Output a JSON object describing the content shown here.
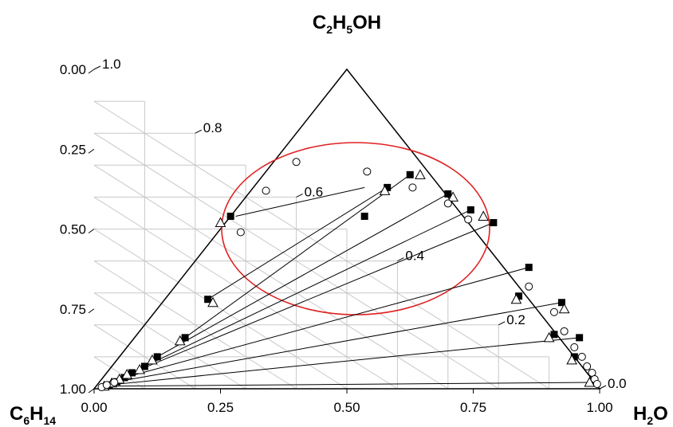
{
  "chart_data": {
    "type": "scatter",
    "subtype": "ternary",
    "title": "",
    "vertices": {
      "top": {
        "base": "C",
        "sub": "2",
        "base2": "H",
        "sub2": "5",
        "base3": "OH"
      },
      "bottom_left": {
        "base": "C",
        "sub": "6",
        "base2": "H",
        "sub2": "14"
      },
      "bottom_right": {
        "base": "H",
        "sub": "2",
        "base2": "O"
      }
    },
    "vertex_labels": {
      "top": "C2H5OH",
      "bottom_left": "C6H14",
      "bottom_right": "H2O"
    },
    "axes": {
      "bottom": {
        "ticks": [
          "0.00",
          "0.25",
          "0.50",
          "0.75",
          "1.00"
        ],
        "values": [
          0,
          0.25,
          0.5,
          0.75,
          1
        ]
      },
      "left": {
        "ticks": [
          "0.00",
          "0.25",
          "0.50",
          "0.75",
          "1.00"
        ],
        "values": [
          0,
          0.25,
          0.5,
          0.75,
          1
        ]
      },
      "right": {
        "ticks": [
          "0.0",
          "0.2",
          "0.4",
          "0.6",
          "0.8",
          "1.0"
        ],
        "values": [
          0,
          0.2,
          0.4,
          0.6,
          0.8,
          1
        ]
      }
    },
    "grid": true,
    "grid_step": 0.1,
    "highlight_ellipse": {
      "color": "#e02020"
    },
    "coordinates_note_fields": [
      "x",
      "y"
    ],
    "series": [
      {
        "marker": "filled-square",
        "points": [
          {
            "x": 0.27,
            "y": 0.54
          },
          {
            "x": 0.535,
            "y": 0.54
          },
          {
            "x": 0.225,
            "y": 0.28
          },
          {
            "x": 0.84,
            "y": 0.29
          },
          {
            "x": 0.18,
            "y": 0.16
          },
          {
            "x": 0.91,
            "y": 0.17
          },
          {
            "x": 0.125,
            "y": 0.1
          },
          {
            "x": 0.95,
            "y": 0.1
          },
          {
            "x": 0.1,
            "y": 0.07
          },
          {
            "x": 0.985,
            "y": 0.02
          },
          {
            "x": 0.075,
            "y": 0.05
          },
          {
            "x": 0.06,
            "y": 0.035
          },
          {
            "x": 0.045,
            "y": 0.022
          },
          {
            "x": 0.03,
            "y": 0.012
          },
          {
            "x": 0.58,
            "y": 0.63
          },
          {
            "x": 0.625,
            "y": 0.67
          },
          {
            "x": 0.7,
            "y": 0.61
          },
          {
            "x": 0.745,
            "y": 0.56
          },
          {
            "x": 0.79,
            "y": 0.52
          },
          {
            "x": 0.86,
            "y": 0.38
          },
          {
            "x": 0.925,
            "y": 0.27
          },
          {
            "x": 0.96,
            "y": 0.16
          }
        ]
      },
      {
        "marker": "open-triangle",
        "points": [
          {
            "x": 0.25,
            "y": 0.52
          },
          {
            "x": 0.575,
            "y": 0.62
          },
          {
            "x": 0.235,
            "y": 0.27
          },
          {
            "x": 0.835,
            "y": 0.28
          },
          {
            "x": 0.17,
            "y": 0.15
          },
          {
            "x": 0.9,
            "y": 0.16
          },
          {
            "x": 0.115,
            "y": 0.09
          },
          {
            "x": 0.945,
            "y": 0.09
          },
          {
            "x": 0.09,
            "y": 0.06
          },
          {
            "x": 0.98,
            "y": 0.02
          },
          {
            "x": 0.065,
            "y": 0.045
          },
          {
            "x": 0.05,
            "y": 0.03
          },
          {
            "x": 0.035,
            "y": 0.018
          },
          {
            "x": 0.02,
            "y": 0.008
          },
          {
            "x": 0.645,
            "y": 0.67
          },
          {
            "x": 0.71,
            "y": 0.6
          },
          {
            "x": 0.77,
            "y": 0.54
          },
          {
            "x": 0.93,
            "y": 0.25
          }
        ]
      },
      {
        "marker": "open-circle",
        "points": [
          {
            "x": 0.34,
            "y": 0.62
          },
          {
            "x": 0.4,
            "y": 0.71
          },
          {
            "x": 0.29,
            "y": 0.49
          },
          {
            "x": 0.54,
            "y": 0.68
          },
          {
            "x": 0.63,
            "y": 0.63
          },
          {
            "x": 0.7,
            "y": 0.58
          },
          {
            "x": 0.74,
            "y": 0.53
          },
          {
            "x": 0.86,
            "y": 0.32
          },
          {
            "x": 0.91,
            "y": 0.24
          },
          {
            "x": 0.93,
            "y": 0.18
          },
          {
            "x": 0.95,
            "y": 0.13
          },
          {
            "x": 0.965,
            "y": 0.1
          },
          {
            "x": 0.975,
            "y": 0.07
          },
          {
            "x": 0.985,
            "y": 0.05
          },
          {
            "x": 0.99,
            "y": 0.03
          },
          {
            "x": 0.995,
            "y": 0.015
          },
          {
            "x": 0.015,
            "y": 0.005
          },
          {
            "x": 0.025,
            "y": 0.012
          },
          {
            "x": 0.04,
            "y": 0.02
          }
        ]
      }
    ],
    "tie_lines": [
      {
        "left": {
          "x": 0.28,
          "y": 0.54
        },
        "right": {
          "x": 0.535,
          "y": 0.63
        }
      },
      {
        "left": {
          "x": 0.225,
          "y": 0.28
        },
        "right": {
          "x": 0.58,
          "y": 0.63
        }
      },
      {
        "left": {
          "x": 0.18,
          "y": 0.16
        },
        "right": {
          "x": 0.625,
          "y": 0.67
        }
      },
      {
        "left": {
          "x": 0.125,
          "y": 0.1
        },
        "right": {
          "x": 0.7,
          "y": 0.61
        }
      },
      {
        "left": {
          "x": 0.1,
          "y": 0.07
        },
        "right": {
          "x": 0.745,
          "y": 0.56
        }
      },
      {
        "left": {
          "x": 0.075,
          "y": 0.05
        },
        "right": {
          "x": 0.79,
          "y": 0.52
        }
      },
      {
        "left": {
          "x": 0.06,
          "y": 0.035
        },
        "right": {
          "x": 0.86,
          "y": 0.38
        }
      },
      {
        "left": {
          "x": 0.045,
          "y": 0.022
        },
        "right": {
          "x": 0.925,
          "y": 0.27
        }
      },
      {
        "left": {
          "x": 0.03,
          "y": 0.012
        },
        "right": {
          "x": 0.96,
          "y": 0.16
        }
      },
      {
        "left": {
          "x": 0.02,
          "y": 0.008
        },
        "right": {
          "x": 0.985,
          "y": 0.02
        }
      }
    ]
  }
}
